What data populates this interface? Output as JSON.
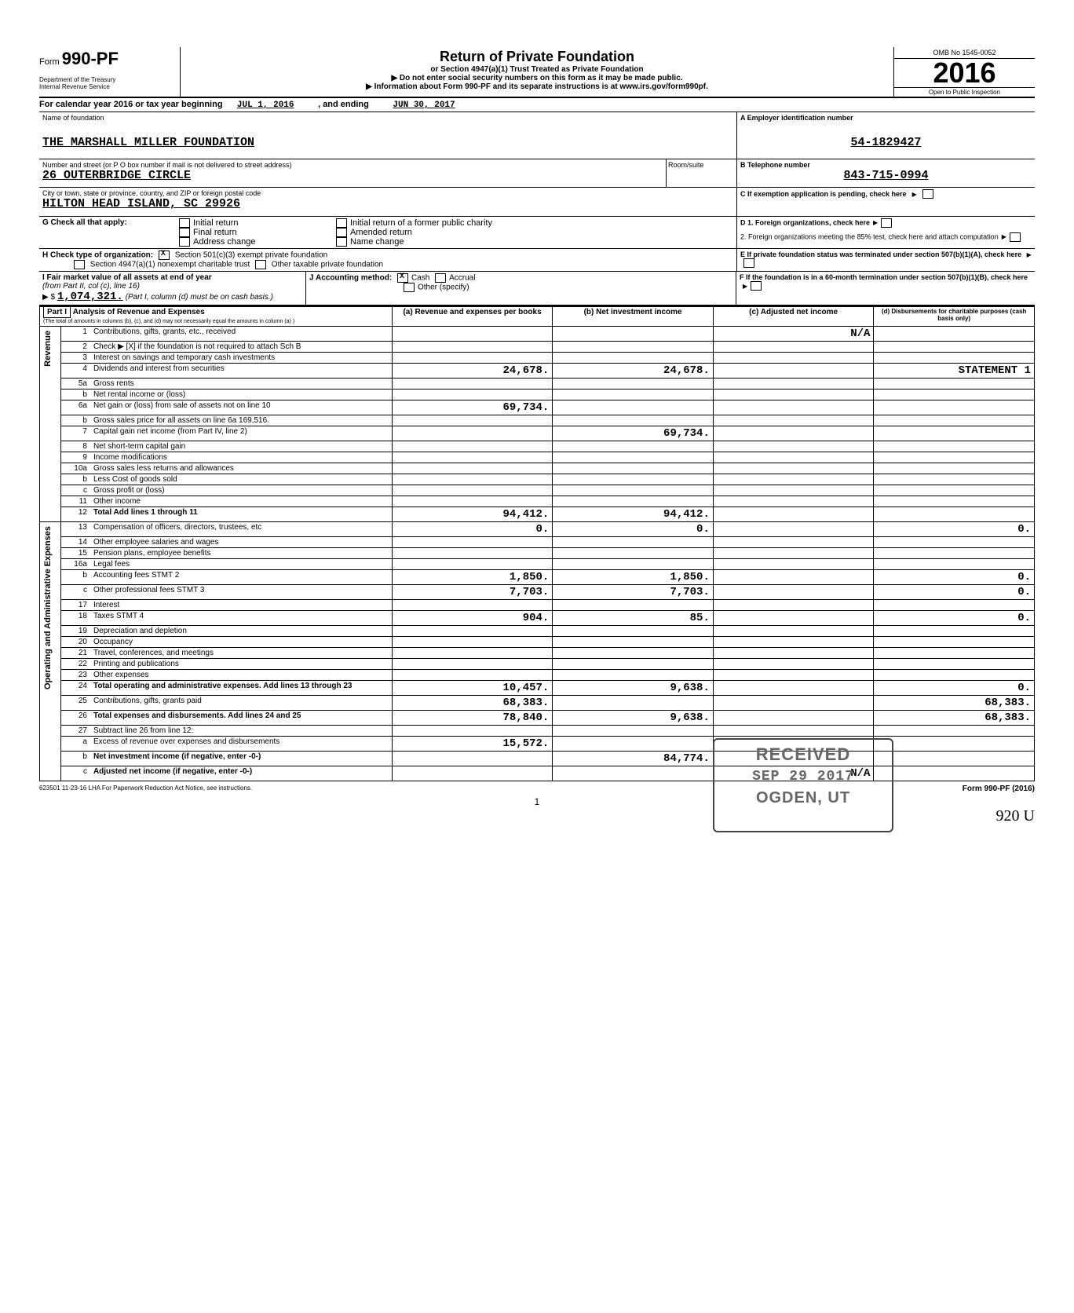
{
  "header": {
    "form_label": "Form",
    "form_no": "990-PF",
    "dept1": "Department of the Treasury",
    "dept2": "Internal Revenue Service",
    "title": "Return of Private Foundation",
    "subtitle": "or Section 4947(a)(1) Trust Treated as Private Foundation",
    "subtitle2": "▶ Do not enter social security numbers on this form as it may be made public.",
    "info_link": "▶ Information about Form 990-PF and its separate instructions is at www.irs.gov/form990pf.",
    "omb": "OMB No 1545-0052",
    "year": "2016",
    "open_inspect": "Open to Public Inspection"
  },
  "cal": {
    "prefix": "For calendar year 2016 or tax year beginning",
    "begin": "JUL 1, 2016",
    "mid": ", and ending",
    "end": "JUN 30, 2017"
  },
  "entity": {
    "name_label": "Name of foundation",
    "name": "THE MARSHALL MILLER FOUNDATION",
    "addr_label": "Number and street (or P O box number if mail is not delivered to street address)",
    "addr": "26 OUTERBRIDGE CIRCLE",
    "room_label": "Room/suite",
    "city_label": "City or town, state or province, country, and ZIP or foreign postal code",
    "city": "HILTON HEAD ISLAND, SC  29926",
    "ein_label": "A Employer identification number",
    "ein": "54-1829427",
    "tel_label": "B Telephone number",
    "tel": "843-715-0994",
    "c_label": "C If exemption application is pending, check here"
  },
  "g": {
    "label": "G  Check all that apply:",
    "opts": [
      "Initial return",
      "Final return",
      "Address change",
      "Initial return of a former public charity",
      "Amended return",
      "Name change"
    ]
  },
  "d": {
    "d1": "D 1. Foreign organizations, check here",
    "d2": "2. Foreign organizations meeting the 85% test, check here and attach computation"
  },
  "h": {
    "label": "H  Check type of organization:",
    "opt1": "Section 501(c)(3) exempt private foundation",
    "opt2": "Section 4947(a)(1) nonexempt charitable trust",
    "opt3": "Other taxable private foundation"
  },
  "e": {
    "e1": "E  If private foundation status was terminated under section 507(b)(1)(A), check here"
  },
  "i": {
    "label": "I  Fair market value of all assets at end of year",
    "sub": "(from Part II, col (c), line 16)",
    "dollar": "▶ $",
    "amount": "1,074,321.",
    "note": "(Part I, column (d) must be on cash basis.)"
  },
  "j": {
    "label": "J  Accounting method:",
    "cash": "Cash",
    "accrual": "Accrual",
    "other": "Other (specify)"
  },
  "f": {
    "f1": "F  If the foundation is in a 60-month termination under section 507(b)(1)(B), check here"
  },
  "part1": {
    "hdr_label": "Part I",
    "hdr_title": "Analysis of Revenue and Expenses",
    "hdr_note": "(The total of amounts in columns (b), (c), and (d) may not necessarily equal the amounts in column (a) )",
    "col_a": "(a) Revenue and expenses per books",
    "col_b": "(b) Net investment income",
    "col_c": "(c) Adjusted net income",
    "col_d": "(d) Disbursements for charitable purposes (cash basis only)",
    "rev_label": "Revenue",
    "exp_label": "Operating and Administrative Expenses",
    "rows": [
      {
        "n": "1",
        "d": "Contributions, gifts, grants, etc., received",
        "c": "N/A"
      },
      {
        "n": "2",
        "d": "Check ▶ [X] if the foundation is not required to attach Sch B"
      },
      {
        "n": "3",
        "d": "Interest on savings and temporary cash investments"
      },
      {
        "n": "4",
        "d": "Dividends and interest from securities",
        "a": "24,678.",
        "b": "24,678.",
        "dval": "STATEMENT 1"
      },
      {
        "n": "5a",
        "d": "Gross rents"
      },
      {
        "n": "b",
        "d": "Net rental income or (loss)"
      },
      {
        "n": "6a",
        "d": "Net gain or (loss) from sale of assets not on line 10",
        "a": "69,734."
      },
      {
        "n": "b",
        "d": "Gross sales price for all assets on line 6a     169,516."
      },
      {
        "n": "7",
        "d": "Capital gain net income (from Part IV, line 2)",
        "b": "69,734."
      },
      {
        "n": "8",
        "d": "Net short-term capital gain"
      },
      {
        "n": "9",
        "d": "Income modifications"
      },
      {
        "n": "10a",
        "d": "Gross sales less returns and allowances"
      },
      {
        "n": "b",
        "d": "Less Cost of goods sold"
      },
      {
        "n": "c",
        "d": "Gross profit or (loss)"
      },
      {
        "n": "11",
        "d": "Other income"
      },
      {
        "n": "12",
        "d": "Total  Add lines 1 through 11",
        "bold": true,
        "a": "94,412.",
        "b": "94,412."
      },
      {
        "n": "13",
        "d": "Compensation of officers, directors, trustees, etc",
        "a": "0.",
        "b": "0.",
        "dval": "0."
      },
      {
        "n": "14",
        "d": "Other employee salaries and wages"
      },
      {
        "n": "15",
        "d": "Pension plans, employee benefits"
      },
      {
        "n": "16a",
        "d": "Legal fees"
      },
      {
        "n": "b",
        "d": "Accounting fees               STMT 2",
        "a": "1,850.",
        "b": "1,850.",
        "dval": "0."
      },
      {
        "n": "c",
        "d": "Other professional fees       STMT 3",
        "a": "7,703.",
        "b": "7,703.",
        "dval": "0."
      },
      {
        "n": "17",
        "d": "Interest"
      },
      {
        "n": "18",
        "d": "Taxes                         STMT 4",
        "a": "904.",
        "b": "85.",
        "dval": "0."
      },
      {
        "n": "19",
        "d": "Depreciation and depletion"
      },
      {
        "n": "20",
        "d": "Occupancy"
      },
      {
        "n": "21",
        "d": "Travel, conferences, and meetings"
      },
      {
        "n": "22",
        "d": "Printing and publications"
      },
      {
        "n": "23",
        "d": "Other expenses"
      },
      {
        "n": "24",
        "d": "Total operating and administrative expenses. Add lines 13 through 23",
        "bold": true,
        "a": "10,457.",
        "b": "9,638.",
        "dval": "0."
      },
      {
        "n": "25",
        "d": "Contributions, gifts, grants paid",
        "a": "68,383.",
        "dval": "68,383."
      },
      {
        "n": "26",
        "d": "Total expenses and disbursements. Add lines 24 and 25",
        "bold": true,
        "a": "78,840.",
        "b": "9,638.",
        "dval": "68,383."
      },
      {
        "n": "27",
        "d": "Subtract line 26 from line 12:"
      },
      {
        "n": "a",
        "d": "Excess of revenue over expenses and disbursements",
        "a": "15,572."
      },
      {
        "n": "b",
        "d": "Net investment income (if negative, enter -0-)",
        "bold": true,
        "b": "84,774."
      },
      {
        "n": "c",
        "d": "Adjusted net income (if negative, enter -0-)",
        "bold": true,
        "c": "N/A"
      }
    ]
  },
  "stamp": {
    "l1": "RECEIVED",
    "l2": "SEP 29 2017",
    "l3": "OGDEN, UT"
  },
  "footer": {
    "left": "623501 11-23-16  LHA  For Paperwork Reduction Act Notice, see instructions.",
    "right": "Form 990-PF (2016)",
    "page": "1",
    "sig": "920  U"
  }
}
